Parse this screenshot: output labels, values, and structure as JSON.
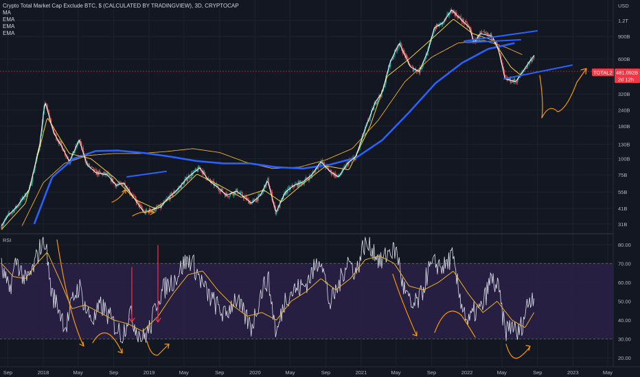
{
  "header": {
    "title": "Crypto Total Market Cap Exclude BTC, $ (CALCULATED BY TRADINGVIEW), 3D, CRYPTOCAP",
    "indicators": [
      "MA",
      "EMA",
      "EMA",
      "EMA"
    ]
  },
  "price_pane": {
    "currency_label": "USD",
    "symbol_badge": "TOTAL2",
    "price_badge": "481.092B",
    "countdown_badge": "2d 12h",
    "badge_color": "#f23645"
  },
  "rsi_pane": {
    "label": "RSI"
  },
  "colors": {
    "background": "#131722",
    "bull": "#26a69a",
    "bear": "#ef5350",
    "price_line": "#ffffff",
    "ema_short": "#f5d142",
    "ema_long": "#f0b429",
    "ma_blue": "#2962ff",
    "rsi_line": "#e0e3eb",
    "rsi_ma": "#f0b429",
    "rsi_band": "#2a2146",
    "annotation_orange": "#ff9800",
    "annotation_red": "#f23645",
    "annotation_blue": "#2962ff"
  },
  "chart_data": [
    {
      "type": "line",
      "pane": "price",
      "scale": "log",
      "y_ticks": [
        "1.2T",
        "900B",
        "600B",
        "320B",
        "240B",
        "180B",
        "130B",
        "100B",
        "75B",
        "55B",
        "41B",
        "31B"
      ],
      "y_tick_values": [
        1200,
        900,
        600,
        320,
        240,
        180,
        130,
        100,
        75,
        55,
        41,
        31
      ],
      "ylim": [
        27,
        1650
      ],
      "x_ticks": [
        "Sep",
        "2018",
        "May",
        "Sep",
        "2019",
        "May",
        "Sep",
        "2020",
        "May",
        "Sep",
        "2021",
        "May",
        "Sep",
        "2022",
        "May",
        "Sep",
        "2023",
        "May"
      ],
      "x_tick_dates": [
        "2017-09-01",
        "2018-01-01",
        "2018-05-01",
        "2018-09-01",
        "2019-01-01",
        "2019-05-01",
        "2019-09-01",
        "2020-01-01",
        "2020-05-01",
        "2020-09-01",
        "2021-01-01",
        "2021-05-01",
        "2021-09-01",
        "2022-01-01",
        "2022-05-01",
        "2022-09-01",
        "2023-01-01",
        "2023-05-01"
      ],
      "xlim": [
        "2017-08-05",
        "2023-05-20"
      ],
      "series": [
        {
          "role": "price",
          "x": [
            "2017-08-10",
            "2017-09-01",
            "2017-10-01",
            "2017-11-15",
            "2017-12-20",
            "2018-01-07",
            "2018-02-06",
            "2018-03-10",
            "2018-04-01",
            "2018-05-05",
            "2018-06-01",
            "2018-07-01",
            "2018-08-10",
            "2018-09-10",
            "2018-10-05",
            "2018-11-14",
            "2018-12-15",
            "2019-01-10",
            "2019-02-10",
            "2019-03-10",
            "2019-04-10",
            "2019-05-15",
            "2019-06-25",
            "2019-07-25",
            "2019-08-25",
            "2019-09-25",
            "2019-10-30",
            "2019-12-20",
            "2020-01-20",
            "2020-02-14",
            "2020-03-13",
            "2020-04-15",
            "2020-05-15",
            "2020-06-15",
            "2020-07-15",
            "2020-08-15",
            "2020-09-15",
            "2020-10-15",
            "2020-11-15",
            "2020-12-15",
            "2021-01-10",
            "2021-02-20",
            "2021-03-15",
            "2021-04-10",
            "2021-05-12",
            "2021-06-20",
            "2021-07-20",
            "2021-08-20",
            "2021-09-10",
            "2021-10-10",
            "2021-11-09",
            "2021-12-15",
            "2022-01-10",
            "2022-01-25",
            "2022-02-15",
            "2022-03-30",
            "2022-04-20",
            "2022-05-12",
            "2022-06-18",
            "2022-07-10",
            "2022-08-01",
            "2022-08-20"
          ],
          "values": [
            30,
            36,
            42,
            58,
            130,
            280,
            160,
            120,
            95,
            140,
            90,
            78,
            75,
            62,
            65,
            48,
            38,
            40,
            42,
            50,
            58,
            72,
            85,
            68,
            60,
            52,
            56,
            45,
            52,
            68,
            38,
            55,
            62,
            66,
            75,
            95,
            80,
            72,
            92,
            105,
            160,
            280,
            330,
            560,
            800,
            520,
            480,
            700,
            1050,
            1150,
            1450,
            1200,
            1050,
            800,
            950,
            900,
            700,
            420,
            400,
            470,
            560,
            640
          ]
        },
        {
          "role": "ema_short",
          "x": [
            "2017-08-10",
            "2017-11-01",
            "2018-01-15",
            "2018-04-01",
            "2018-06-15",
            "2018-09-01",
            "2018-11-15",
            "2019-01-20",
            "2019-04-01",
            "2019-06-15",
            "2019-09-01",
            "2019-11-15",
            "2020-02-01",
            "2020-04-01",
            "2020-06-15",
            "2020-09-01",
            "2020-11-20",
            "2021-02-01",
            "2021-04-01",
            "2021-06-15",
            "2021-09-01",
            "2021-11-15",
            "2022-01-20",
            "2022-04-01",
            "2022-06-01",
            "2022-07-10"
          ],
          "values": [
            28,
            45,
            210,
            110,
            100,
            72,
            48,
            41,
            52,
            76,
            62,
            50,
            57,
            46,
            64,
            88,
            82,
            180,
            440,
            600,
            860,
            1230,
            950,
            840,
            520,
            440
          ]
        },
        {
          "role": "ema_long",
          "x": [
            "2017-10-20",
            "2018-01-01",
            "2018-03-15",
            "2018-06-01",
            "2018-09-01",
            "2018-12-01",
            "2019-03-01",
            "2019-06-01",
            "2019-09-01",
            "2019-12-01",
            "2020-03-01",
            "2020-06-01",
            "2020-09-01",
            "2020-12-01",
            "2021-03-01",
            "2021-06-01",
            "2021-09-01",
            "2021-12-01",
            "2022-03-01",
            "2022-05-15",
            "2022-07-10"
          ],
          "values": [
            30,
            65,
            92,
            106,
            110,
            110,
            114,
            120,
            112,
            94,
            84,
            86,
            98,
            120,
            200,
            400,
            620,
            800,
            840,
            740,
            650
          ]
        },
        {
          "role": "ma_blue",
          "x": [
            "2017-12-01",
            "2018-02-01",
            "2018-04-15",
            "2018-07-01",
            "2018-09-15",
            "2018-12-15",
            "2019-03-15",
            "2019-06-15",
            "2019-09-15",
            "2019-12-15",
            "2020-03-15",
            "2020-06-15",
            "2020-09-15",
            "2020-12-15",
            "2021-03-15",
            "2021-06-15",
            "2021-09-15",
            "2021-12-15",
            "2022-03-15",
            "2022-06-15"
          ],
          "values": [
            31,
            72,
            100,
            115,
            116,
            111,
            104,
            96,
            92,
            92,
            86,
            84,
            90,
            102,
            140,
            230,
            390,
            560,
            720,
            800
          ]
        }
      ]
    },
    {
      "type": "line",
      "pane": "rsi",
      "y_ticks": [
        "80.00",
        "70.00",
        "60.00",
        "50.00",
        "40.00",
        "30.00",
        "20.00"
      ],
      "y_tick_values": [
        80,
        70,
        60,
        50,
        40,
        30,
        20
      ],
      "ylim": [
        16,
        85
      ],
      "band": [
        30,
        70
      ],
      "series": [
        {
          "role": "rsi",
          "x": [
            "2017-08-10",
            "2017-09-05",
            "2017-10-01",
            "2017-11-01",
            "2017-11-25",
            "2017-12-20",
            "2018-01-07",
            "2018-01-30",
            "2018-02-20",
            "2018-03-20",
            "2018-04-15",
            "2018-05-05",
            "2018-06-01",
            "2018-06-25",
            "2018-07-20",
            "2018-08-15",
            "2018-09-10",
            "2018-10-01",
            "2018-10-25",
            "2018-11-20",
            "2018-12-10",
            "2019-01-05",
            "2019-02-01",
            "2019-03-01",
            "2019-04-01",
            "2019-05-01",
            "2019-05-25",
            "2019-06-25",
            "2019-07-20",
            "2019-08-20",
            "2019-09-20",
            "2019-10-25",
            "2019-11-20",
            "2019-12-20",
            "2020-01-25",
            "2020-02-15",
            "2020-03-15",
            "2020-04-15",
            "2020-05-15",
            "2020-06-20",
            "2020-07-20",
            "2020-08-15",
            "2020-09-15",
            "2020-10-15",
            "2020-11-15",
            "2020-12-15",
            "2021-01-10",
            "2021-02-10",
            "2021-03-10",
            "2021-04-10",
            "2021-05-05",
            "2021-05-25",
            "2021-06-25",
            "2021-07-25",
            "2021-08-20",
            "2021-09-15",
            "2021-10-15",
            "2021-11-10",
            "2021-12-05",
            "2022-01-05",
            "2022-01-25",
            "2022-02-20",
            "2022-03-25",
            "2022-04-20",
            "2022-05-12",
            "2022-06-10",
            "2022-06-20",
            "2022-07-10",
            "2022-08-01",
            "2022-08-20"
          ],
          "values": [
            68,
            55,
            72,
            60,
            66,
            78,
            83,
            54,
            48,
            36,
            52,
            58,
            44,
            40,
            48,
            42,
            36,
            32,
            44,
            35,
            30,
            36,
            52,
            58,
            62,
            70,
            72,
            62,
            54,
            48,
            42,
            52,
            44,
            36,
            56,
            62,
            32,
            52,
            56,
            58,
            66,
            74,
            48,
            58,
            72,
            65,
            80,
            78,
            70,
            77,
            76,
            58,
            46,
            52,
            66,
            70,
            68,
            74,
            54,
            38,
            44,
            46,
            62,
            56,
            34,
            38,
            31,
            38,
            50,
            54
          ]
        },
        {
          "role": "rsi_ma",
          "x": [
            "2017-08-10",
            "2017-09-20",
            "2017-11-01",
            "2017-12-10",
            "2018-01-15",
            "2018-02-25",
            "2018-04-10",
            "2018-05-25",
            "2018-07-15",
            "2018-09-01",
            "2018-10-20",
            "2018-12-10",
            "2019-02-01",
            "2019-03-25",
            "2019-05-15",
            "2019-07-05",
            "2019-08-25",
            "2019-10-15",
            "2019-12-05",
            "2020-01-25",
            "2020-03-15",
            "2020-05-05",
            "2020-06-25",
            "2020-08-15",
            "2020-10-05",
            "2020-11-25",
            "2021-01-15",
            "2021-03-05",
            "2021-04-25",
            "2021-06-15",
            "2021-08-05",
            "2021-09-25",
            "2021-11-15",
            "2022-01-05",
            "2022-02-25",
            "2022-04-15",
            "2022-06-05",
            "2022-07-20",
            "2022-08-20"
          ],
          "values": [
            70,
            63,
            62,
            70,
            76,
            62,
            46,
            48,
            44,
            40,
            38,
            34,
            42,
            54,
            64,
            66,
            56,
            48,
            42,
            44,
            40,
            50,
            55,
            62,
            56,
            62,
            72,
            74,
            70,
            58,
            56,
            60,
            66,
            54,
            44,
            50,
            40,
            36,
            44
          ]
        }
      ]
    }
  ],
  "annotations": {
    "orange_arrow_labels": [],
    "note": ""
  }
}
